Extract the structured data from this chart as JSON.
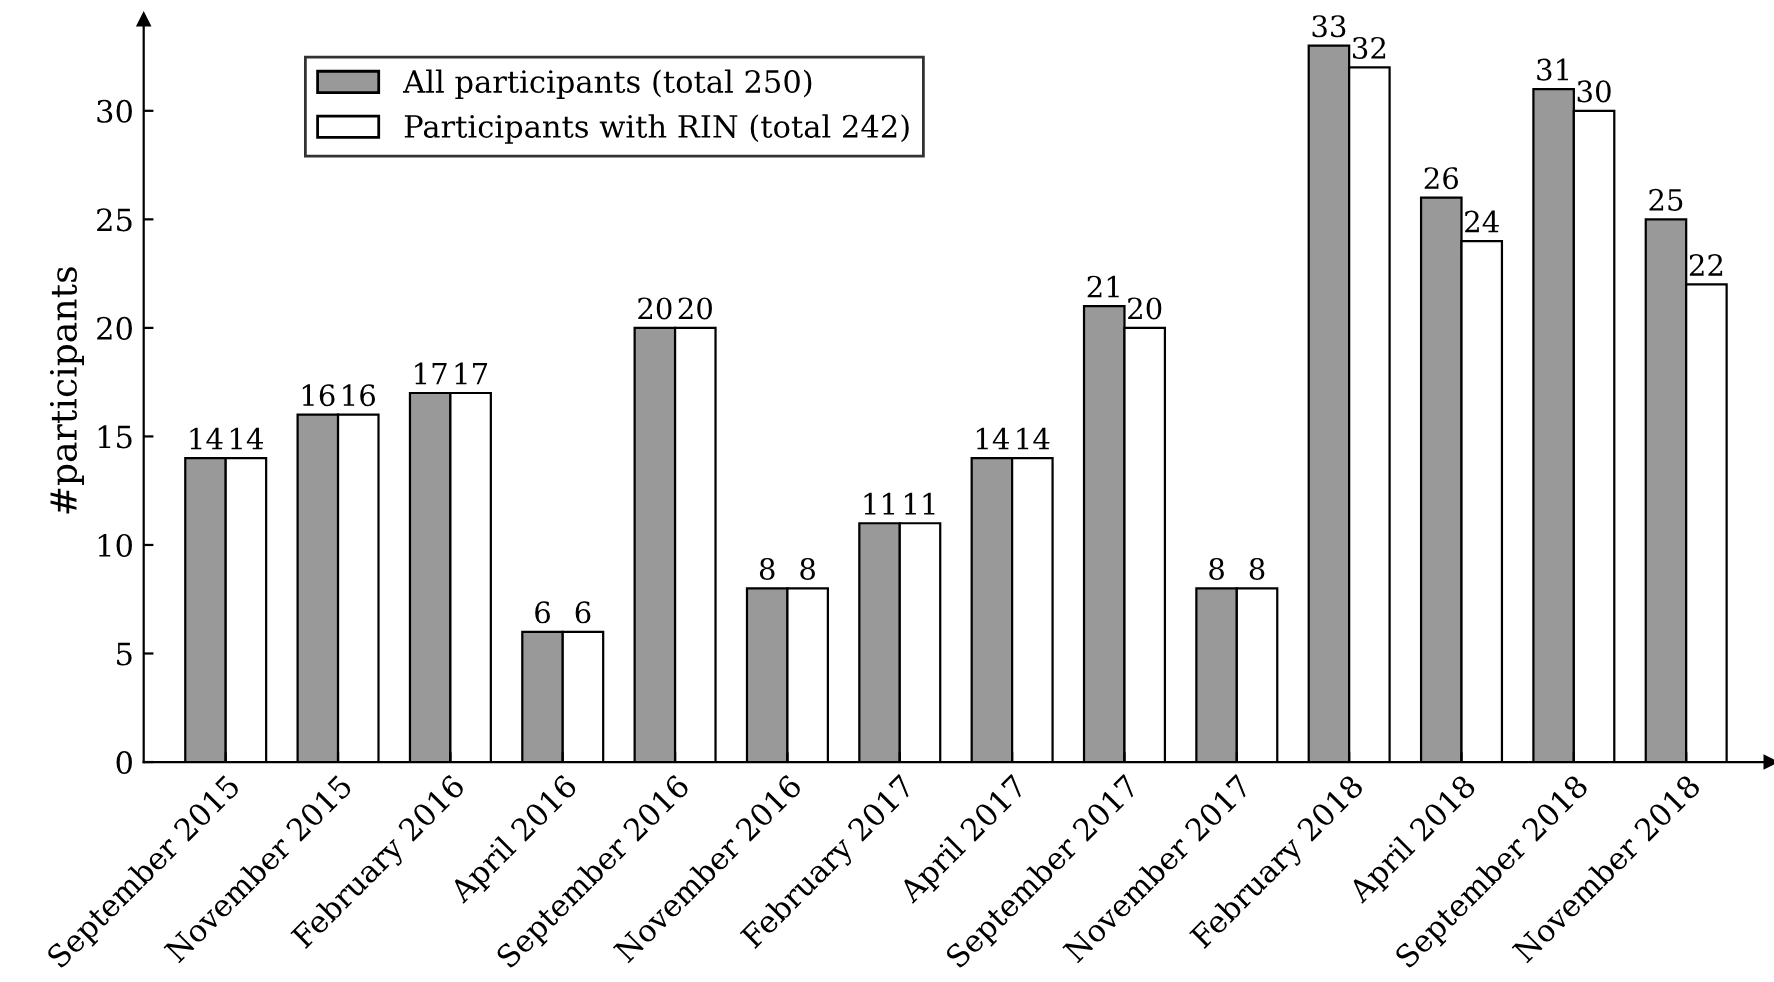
{
  "chart_data": {
    "type": "bar",
    "ylabel": "#participants",
    "categories": [
      "September 2015",
      "November 2015",
      "February 2016",
      "April 2016",
      "September 2016",
      "November 2016",
      "February 2017",
      "April 2017",
      "September 2017",
      "November 2017",
      "February 2018",
      "April 2018",
      "September 2018",
      "November 2018"
    ],
    "series": [
      {
        "name": "All participants (total 250)",
        "color": "#999999",
        "values": [
          14,
          16,
          17,
          6,
          20,
          8,
          11,
          14,
          21,
          8,
          33,
          26,
          31,
          25
        ]
      },
      {
        "name": "Participants with RIN (total 242)",
        "color": "#ffffff",
        "values": [
          14,
          16,
          17,
          6,
          20,
          8,
          11,
          14,
          20,
          8,
          32,
          24,
          30,
          22
        ]
      }
    ],
    "ylim": [
      0,
      34.2
    ],
    "yticks": [
      0,
      5,
      10,
      15,
      20,
      25,
      30
    ],
    "data_labels": true,
    "grid": false,
    "legend": "top left"
  }
}
